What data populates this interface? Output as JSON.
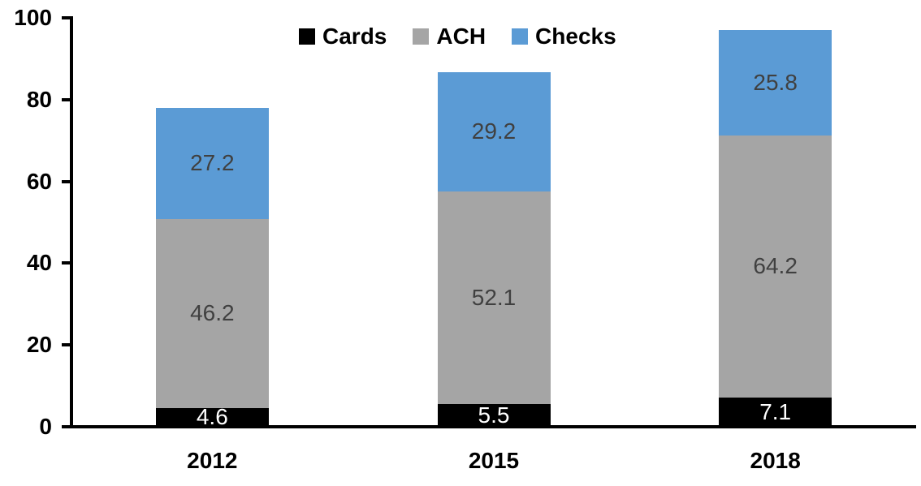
{
  "chart_data": {
    "type": "bar",
    "stacked": true,
    "title": "",
    "xlabel": "",
    "ylabel": "",
    "categories": [
      "2012",
      "2015",
      "2018"
    ],
    "series": [
      {
        "name": "Cards",
        "color": "#000000",
        "label_color": "#FFFFFF",
        "values": [
          4.6,
          5.5,
          7.1
        ]
      },
      {
        "name": "ACH",
        "color": "#A5A5A5",
        "label_color": "#404040",
        "values": [
          46.2,
          52.1,
          64.2
        ]
      },
      {
        "name": "Checks",
        "color": "#5B9BD5",
        "label_color": "#404040",
        "values": [
          27.2,
          29.2,
          25.8
        ]
      }
    ],
    "totals": [
      78.0,
      86.8,
      97.1
    ],
    "ylim": [
      0,
      100
    ],
    "yticks": [
      0,
      20,
      40,
      60,
      80,
      100
    ],
    "grid": false,
    "legend": {
      "position": "top",
      "labels": [
        "Cards",
        "ACH",
        "Checks"
      ]
    },
    "axis_color": "#000000",
    "background": "#FFFFFF"
  }
}
